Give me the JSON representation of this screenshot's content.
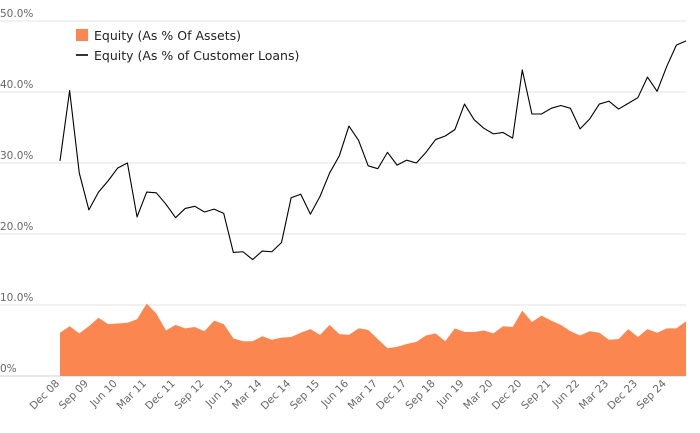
{
  "chart_data": {
    "type": "area",
    "legend_position": "top-left",
    "grid": true,
    "ylim": [
      0,
      50
    ],
    "yticks": [
      0,
      10,
      20,
      30,
      40,
      50
    ],
    "ytick_labels": [
      "0%",
      "10.0%",
      "20.0%",
      "30.0%",
      "40.0%",
      "50.0%"
    ],
    "xtick_labels": [
      "Dec 08",
      "Sep 09",
      "Jun 10",
      "Mar 11",
      "Dec 11",
      "Sep 12",
      "Jun 13",
      "Mar 14",
      "Dec 14",
      "Sep 15",
      "Jun 16",
      "Mar 17",
      "Dec 17",
      "Sep 18",
      "Jun 19",
      "Mar 20",
      "Dec 20",
      "Sep 21",
      "Jun 22",
      "Mar 23",
      "Dec 23",
      "Sep 24"
    ],
    "series": [
      {
        "name": "Equity (As % Of Assets)",
        "type": "area",
        "color": "#fb8650",
        "values": [
          6.1,
          7.0,
          6.0,
          7.0,
          8.2,
          7.3,
          7.4,
          7.5,
          8.0,
          10.2,
          8.8,
          6.4,
          7.2,
          6.7,
          6.9,
          6.3,
          7.8,
          7.3,
          5.3,
          4.9,
          4.9,
          5.6,
          5.1,
          5.4,
          5.5,
          6.1,
          6.6,
          5.8,
          7.2,
          5.9,
          5.8,
          6.7,
          6.5,
          5.2,
          3.9,
          4.1,
          4.5,
          4.8,
          5.7,
          6.0,
          4.9,
          6.7,
          6.2,
          6.2,
          6.4,
          6.0,
          7.0,
          6.9,
          9.2,
          7.6,
          8.5,
          7.8,
          7.2,
          6.3,
          5.7,
          6.3,
          6.1,
          5.1,
          5.2,
          6.6,
          5.5,
          6.6,
          6.1,
          6.7,
          6.7,
          7.7
        ]
      },
      {
        "name": "Equity (As % of Customer Loans)",
        "type": "line",
        "color": "#000000",
        "values": [
          30.3,
          40.2,
          28.6,
          23.4,
          25.9,
          27.5,
          29.3,
          30.0,
          22.4,
          25.9,
          25.8,
          24.2,
          22.3,
          23.6,
          23.9,
          23.1,
          23.5,
          22.9,
          17.4,
          17.5,
          16.4,
          17.6,
          17.5,
          18.8,
          25.1,
          25.6,
          22.8,
          25.3,
          28.6,
          31.0,
          35.2,
          33.2,
          29.6,
          29.2,
          31.5,
          29.7,
          30.4,
          30.0,
          31.5,
          33.3,
          33.8,
          34.7,
          38.3,
          36.1,
          34.9,
          34.1,
          34.3,
          33.5,
          43.1,
          36.9,
          36.9,
          37.7,
          38.1,
          37.7,
          34.8,
          36.2,
          38.3,
          38.7,
          37.6,
          38.4,
          39.2,
          42.1,
          40.1,
          43.6,
          46.6,
          47.2
        ]
      }
    ]
  }
}
